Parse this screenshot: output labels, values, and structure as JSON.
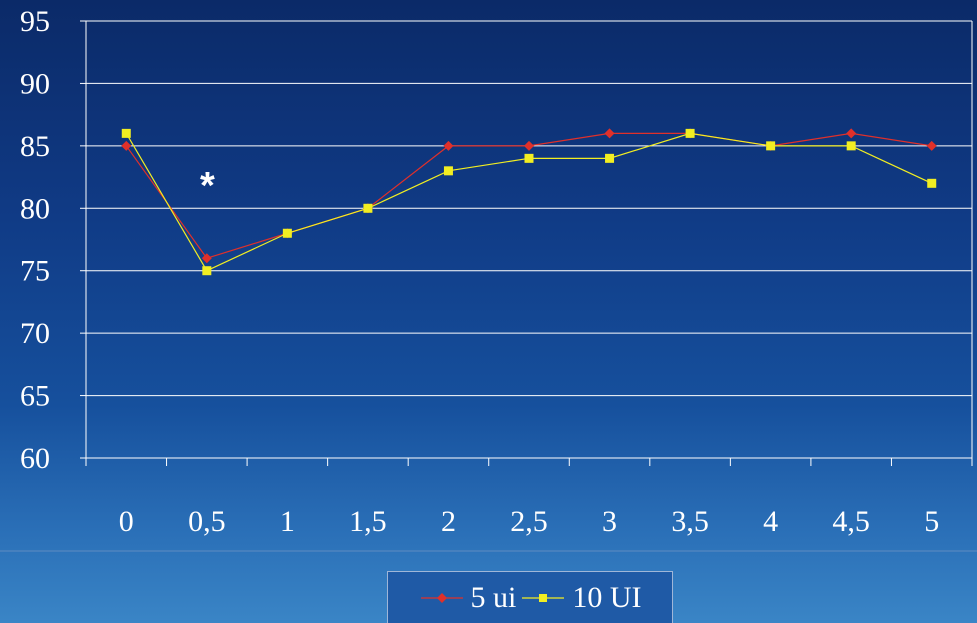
{
  "chart_data": {
    "type": "line",
    "categories": [
      "0",
      "0,5",
      "1",
      "1,5",
      "2",
      "2,5",
      "3",
      "3,5",
      "4",
      "4,5",
      "5"
    ],
    "ylim": [
      60,
      95
    ],
    "yticks": [
      "60",
      "65",
      "70",
      "75",
      "80",
      "85",
      "90",
      "95"
    ],
    "grid": true,
    "legend_position": "bottom",
    "annotation": "*",
    "series": [
      {
        "name": "5 ui",
        "color": "#e0302a",
        "marker": "diamond",
        "values": [
          85,
          76,
          78,
          80,
          85,
          85,
          86,
          86,
          85,
          86,
          85
        ]
      },
      {
        "name": "10 UI",
        "color": "#f2ee22",
        "marker": "square",
        "values": [
          86,
          75,
          78,
          80,
          83,
          84,
          84,
          86,
          85,
          85,
          82
        ]
      }
    ]
  }
}
